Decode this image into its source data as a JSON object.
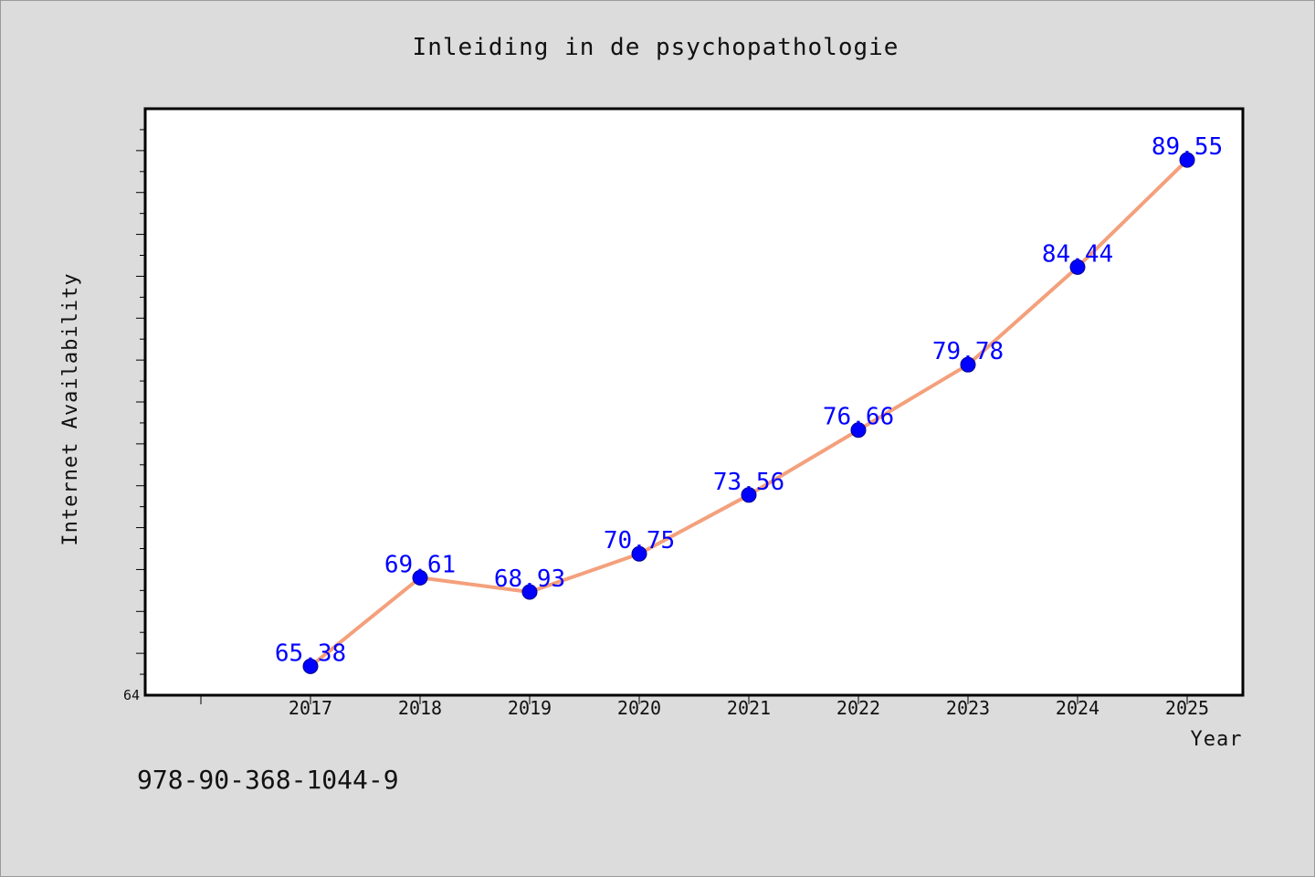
{
  "chart_data": {
    "type": "line",
    "title": "Inleiding in de psychopathologie",
    "xlabel": "Year",
    "ylabel": "Internet Availability",
    "x": [
      "2017",
      "2018",
      "2019",
      "2020",
      "2021",
      "2022",
      "2023",
      "2024",
      "2025"
    ],
    "series": [
      {
        "values": [
          65.38,
          69.61,
          68.93,
          70.75,
          73.56,
          76.66,
          79.78,
          84.44,
          89.55
        ],
        "data_labels": [
          "65.38",
          "69.61",
          "68.93",
          "70.75",
          "73.56",
          "76.66",
          "79.78",
          "84.44",
          "89.55"
        ]
      }
    ],
    "ylim": [
      64,
      92
    ],
    "y_tick_labels": [
      "64"
    ],
    "grid": false,
    "legend": "none",
    "colors": {
      "line": "#f4a07c",
      "marker": "#0000ff",
      "data_label": "#0000ff",
      "plot_background": "#ffffff",
      "page_background": "#dcdcdc"
    }
  },
  "caption": "978-90-368-1044-9"
}
